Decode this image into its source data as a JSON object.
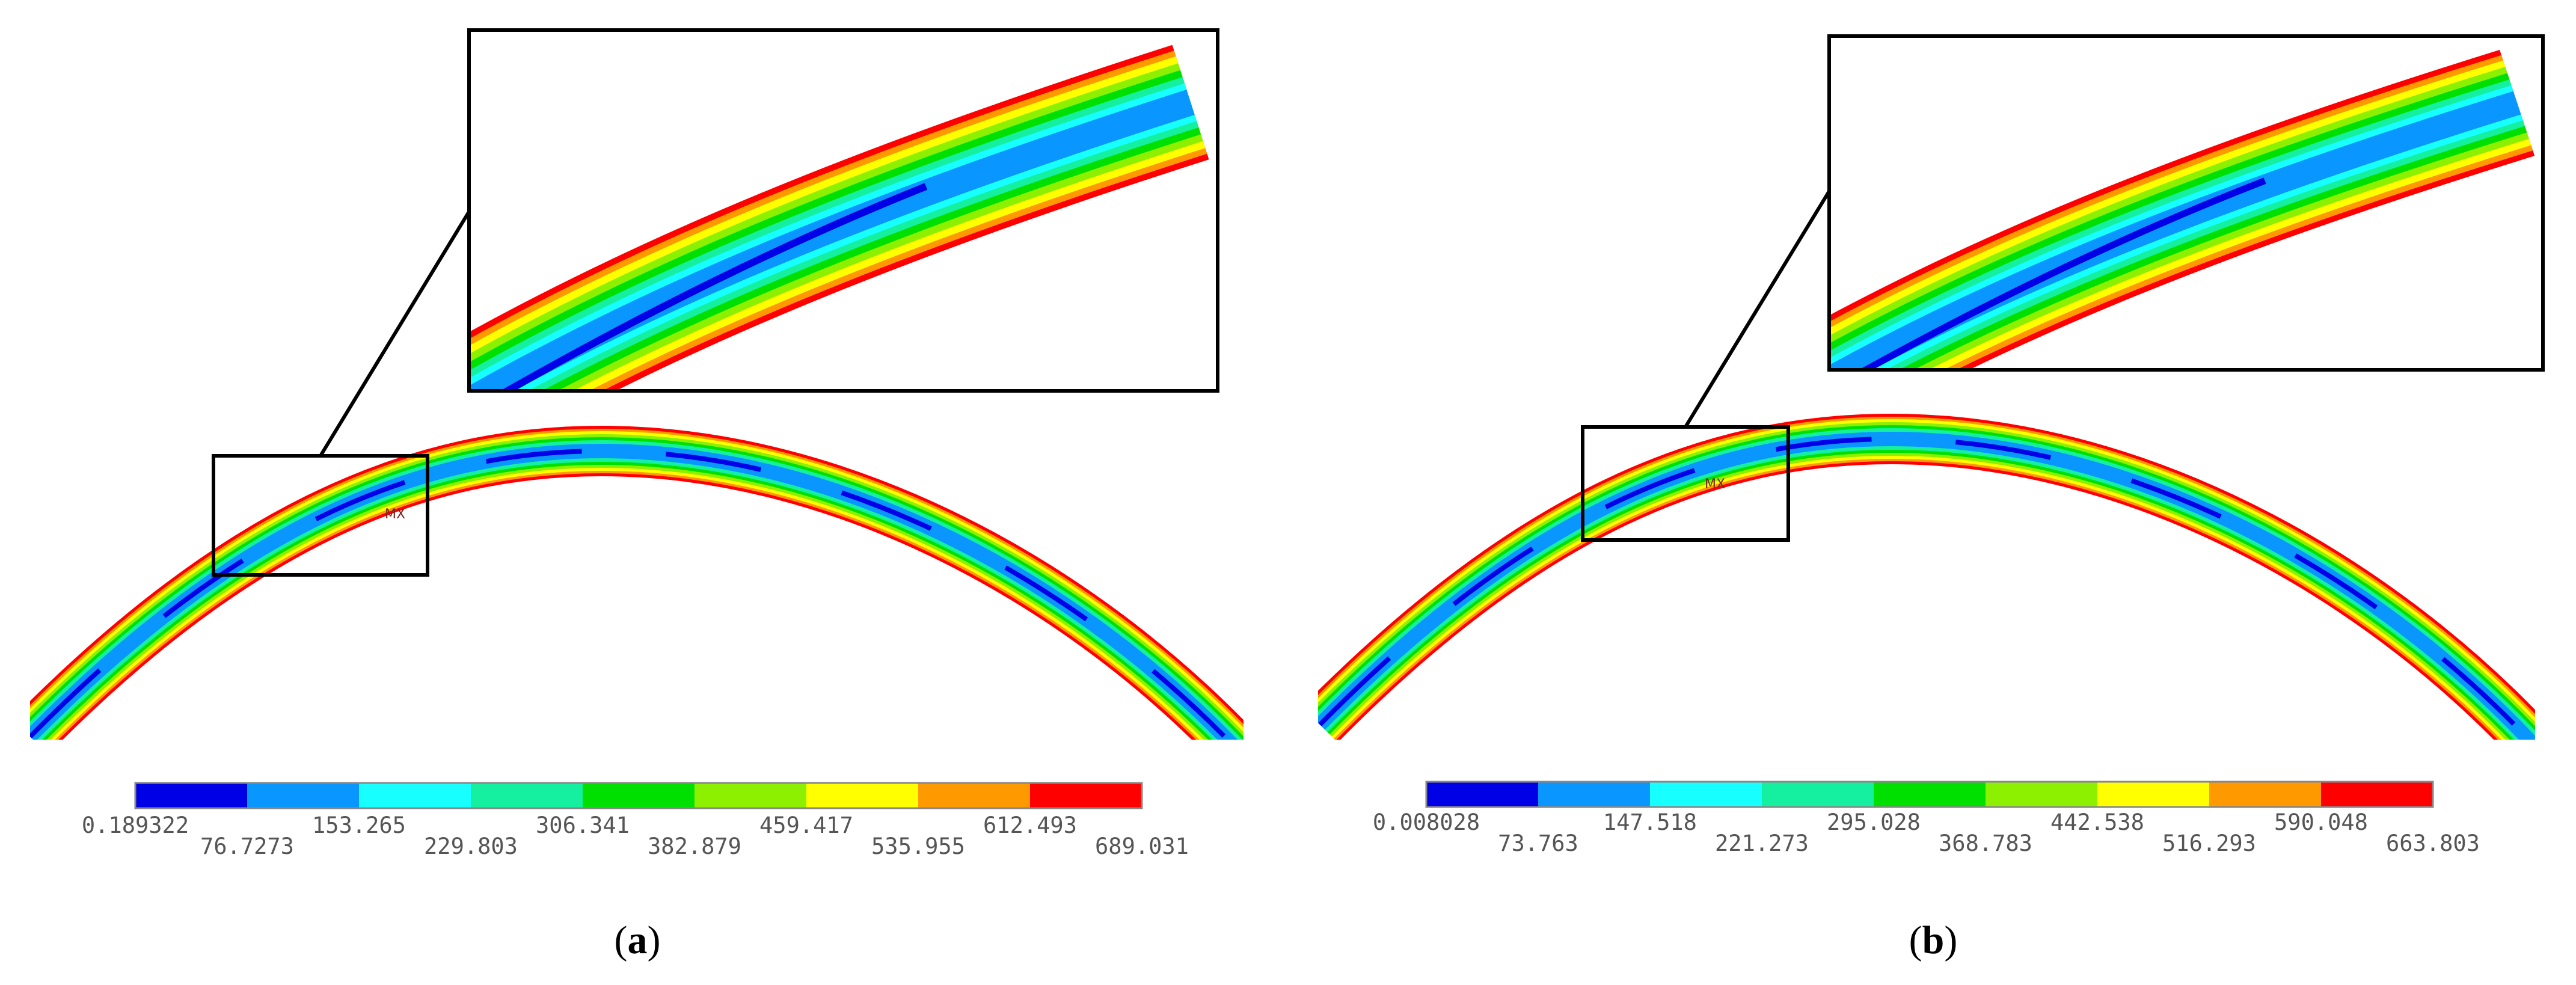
{
  "colors": {
    "band_0": "#0000e6",
    "band_1": "#0a96ff",
    "band_2": "#18ffff",
    "band_3": "#14f0a0",
    "band_4": "#00e000",
    "band_5": "#8cf000",
    "band_6": "#ffff00",
    "band_7": "#ff9900",
    "band_8": "#ff0000"
  },
  "panels": [
    {
      "caption_letter": "a",
      "caption_open": "(",
      "caption_close": ")",
      "max_marker": "MX",
      "legend": {
        "upper_labels": [
          "0.189322",
          "153.265",
          "306.341",
          "459.417",
          "612.493"
        ],
        "lower_labels": [
          "76.7273",
          "229.803",
          "382.879",
          "535.955",
          "689.031"
        ]
      }
    },
    {
      "caption_letter": "b",
      "caption_open": "(",
      "caption_close": ")",
      "max_marker": "MX",
      "legend": {
        "upper_labels": [
          "0.008028",
          "147.518",
          "295.028",
          "442.538",
          "590.048"
        ],
        "lower_labels": [
          "73.763",
          "221.273",
          "368.783",
          "516.293",
          "663.803"
        ]
      }
    }
  ]
}
